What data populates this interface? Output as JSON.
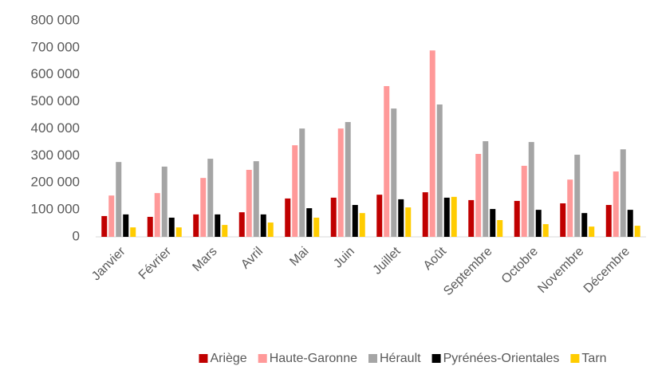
{
  "chart_data": {
    "type": "bar",
    "categories": [
      "Janvier",
      "Février",
      "Mars",
      "Avril",
      "Mai",
      "Juin",
      "Juillet",
      "Août",
      "Septembre",
      "Octobre",
      "Novembre",
      "Décembre"
    ],
    "series": [
      {
        "name": "Ariège",
        "color": "#c00000",
        "values": [
          77000,
          74000,
          83000,
          91000,
          142000,
          145000,
          156000,
          165000,
          136000,
          133000,
          124000,
          118000
        ]
      },
      {
        "name": "Haute-Garonne",
        "color": "#ff9999",
        "values": [
          153000,
          162000,
          218000,
          248000,
          339000,
          401000,
          558000,
          690000,
          307000,
          263000,
          212000,
          242000
        ]
      },
      {
        "name": "Hérault",
        "color": "#a5a5a5",
        "values": [
          277000,
          260000,
          289000,
          280000,
          401000,
          425000,
          475000,
          490000,
          354000,
          351000,
          304000,
          324000
        ]
      },
      {
        "name": "Pyrénées-Orientales",
        "color": "#000000",
        "values": [
          83000,
          71000,
          83000,
          83000,
          106000,
          118000,
          139000,
          145000,
          103000,
          100000,
          88000,
          100000
        ]
      },
      {
        "name": "Tarn",
        "color": "#ffcc00",
        "values": [
          35000,
          35000,
          44000,
          53000,
          71000,
          88000,
          109000,
          148000,
          62000,
          47000,
          38000,
          41000
        ]
      }
    ],
    "ylim": [
      0,
      800000
    ],
    "yticks": [
      0,
      {
        "value": 100000,
        "label": "100 000"
      },
      {
        "value": 200000,
        "label": "200 000"
      },
      {
        "value": 300000,
        "label": "300 000"
      },
      {
        "value": 400000,
        "label": "400 000"
      },
      {
        "value": 500000,
        "label": "500 000"
      },
      {
        "value": 600000,
        "label": "600 000"
      },
      {
        "value": 700000,
        "label": "700 000"
      },
      {
        "value": 800000,
        "label": "800 000"
      }
    ],
    "grid": false,
    "legend": "bottom"
  }
}
